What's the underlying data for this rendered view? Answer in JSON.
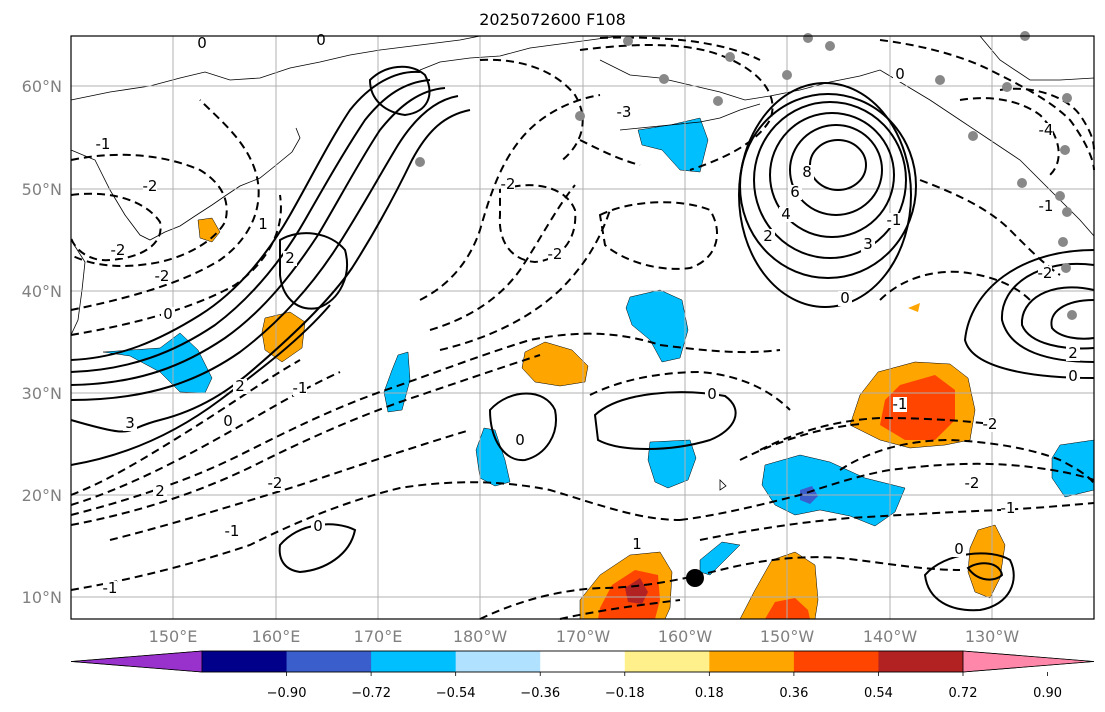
{
  "title": "2025072600 F108",
  "map": {
    "lat_labels": [
      "60°N",
      "50°N",
      "40°N",
      "30°N",
      "20°N",
      "10°N"
    ],
    "lon_labels": [
      "150°E",
      "160°E",
      "170°E",
      "180°W",
      "170°W",
      "160°W",
      "150°W",
      "140°W",
      "130°W"
    ],
    "contour_labels": [
      "0",
      "0",
      "-1",
      "-2",
      "-2",
      "-2",
      "0",
      "1",
      "2",
      "3",
      "2",
      "0",
      "-1",
      "2",
      "-2",
      "-2",
      "-3",
      "-4",
      "-1",
      "0",
      "2",
      "3",
      "4",
      "6",
      "8",
      "-1",
      "2",
      "-2",
      "0",
      "0",
      "-1",
      "-2",
      "0",
      "0",
      "0",
      "-2",
      "-1",
      "1",
      "-1",
      "-2",
      "0",
      "-1"
    ]
  },
  "colorbar": {
    "tick_labels": [
      "−0.90",
      "−0.72",
      "−0.54",
      "−0.36",
      "−0.18",
      "0.18",
      "0.36",
      "0.54",
      "0.72",
      "0.90"
    ],
    "colors": [
      "#9932cc",
      "#00008b",
      "#3a5fcd",
      "#00bfff",
      "#b0e2ff",
      "#ffffff",
      "#fff08c",
      "#ffa500",
      "#ff4500",
      "#b22222",
      "#ff88aa"
    ]
  },
  "colors": {
    "frame": "#000000",
    "grid": "#b0b0b0",
    "label_gray": "#808080"
  }
}
